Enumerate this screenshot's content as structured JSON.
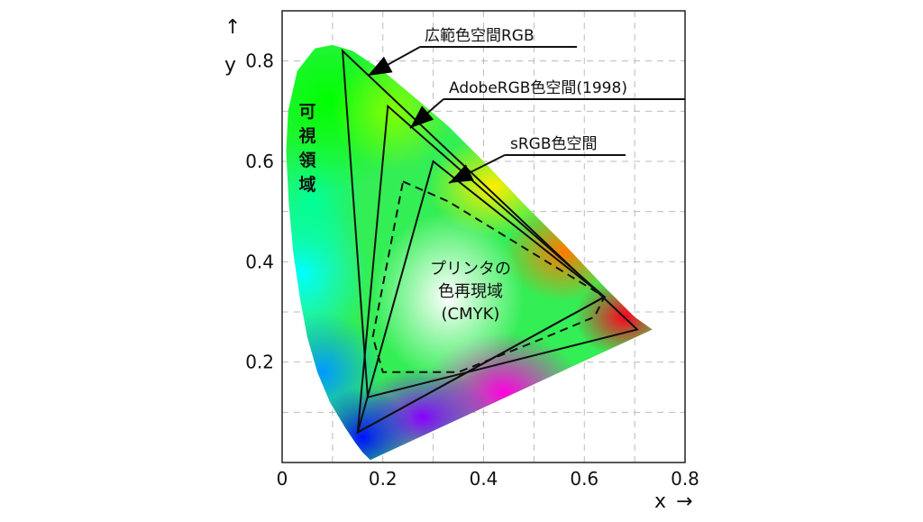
{
  "chart_data": {
    "type": "scatter",
    "title": "",
    "xlabel": "x",
    "ylabel": "y",
    "xlim": [
      0,
      0.8
    ],
    "ylim": [
      0,
      0.9
    ],
    "grid": true,
    "x_ticks": [
      {
        "value": 0,
        "label": "0"
      },
      {
        "value": 0.2,
        "label": "0.2"
      },
      {
        "value": 0.4,
        "label": "0.4"
      },
      {
        "value": 0.6,
        "label": "0.6"
      },
      {
        "value": 0.8,
        "label": "0.8"
      }
    ],
    "y_ticks": [
      {
        "value": 0.2,
        "label": "0.2"
      },
      {
        "value": 0.4,
        "label": "0.4"
      },
      {
        "value": 0.6,
        "label": "0.6"
      },
      {
        "value": 0.8,
        "label": "0.8"
      }
    ],
    "x_arrow": "→",
    "y_arrow": "↑",
    "spectral_locus": [
      [
        0.175,
        0.005
      ],
      [
        0.17,
        0.01
      ],
      [
        0.16,
        0.02
      ],
      [
        0.145,
        0.04
      ],
      [
        0.125,
        0.07
      ],
      [
        0.095,
        0.12
      ],
      [
        0.07,
        0.18
      ],
      [
        0.05,
        0.25
      ],
      [
        0.035,
        0.33
      ],
      [
        0.022,
        0.42
      ],
      [
        0.013,
        0.52
      ],
      [
        0.008,
        0.62
      ],
      [
        0.012,
        0.7
      ],
      [
        0.03,
        0.78
      ],
      [
        0.065,
        0.825
      ],
      [
        0.1,
        0.832
      ],
      [
        0.14,
        0.82
      ],
      [
        0.2,
        0.78
      ],
      [
        0.26,
        0.73
      ],
      [
        0.33,
        0.67
      ],
      [
        0.4,
        0.6
      ],
      [
        0.48,
        0.515
      ],
      [
        0.56,
        0.435
      ],
      [
        0.64,
        0.35
      ],
      [
        0.7,
        0.29
      ],
      [
        0.735,
        0.265
      ]
    ],
    "series": [
      {
        "name": "広範色空間RGB",
        "style": "solid",
        "points": [
          [
            0.12,
            0.82
          ],
          [
            0.17,
            0.13
          ],
          [
            0.705,
            0.265
          ]
        ]
      },
      {
        "name": "AdobeRGB色空間(1998)",
        "style": "solid",
        "points": [
          [
            0.21,
            0.71
          ],
          [
            0.15,
            0.06
          ],
          [
            0.64,
            0.33
          ]
        ]
      },
      {
        "name": "sRGB色空間",
        "style": "solid",
        "points": [
          [
            0.3,
            0.6
          ],
          [
            0.15,
            0.06
          ],
          [
            0.64,
            0.33
          ]
        ]
      },
      {
        "name": "プリンタの色再現域 (CMYK)",
        "style": "dashed",
        "points": [
          [
            0.24,
            0.56
          ],
          [
            0.33,
            0.52
          ],
          [
            0.64,
            0.33
          ],
          [
            0.62,
            0.29
          ],
          [
            0.5,
            0.24
          ],
          [
            0.35,
            0.18
          ],
          [
            0.2,
            0.18
          ],
          [
            0.18,
            0.25
          ]
        ]
      }
    ],
    "annotations": [
      {
        "text": "広範色空間RGB",
        "target_series": 0
      },
      {
        "text": "AdobeRGB色空間(1998)",
        "target_series": 1
      },
      {
        "text": "sRGB色空間",
        "target_series": 2
      }
    ],
    "region_label": [
      "可",
      "視",
      "領",
      "域"
    ],
    "inner_label": [
      "プリンタの",
      "色再現域",
      "(CMYK)"
    ]
  }
}
